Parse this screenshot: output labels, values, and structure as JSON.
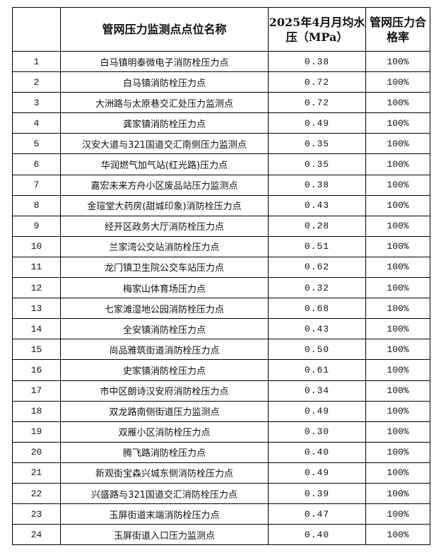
{
  "table": {
    "headers": [
      "",
      "管网压力监测点点位名称",
      "2025年4月月均水压（MPa）",
      "管网压力合格率"
    ],
    "rows": [
      {
        "no": "1",
        "name": "白马镇明泰微电子消防栓压力点",
        "pressure": "0.38",
        "rate": "100%"
      },
      {
        "no": "2",
        "name": "白马镇消防栓压力点",
        "pressure": "0.72",
        "rate": "100%"
      },
      {
        "no": "3",
        "name": "大洲路与太原巷交汇处压力监测点",
        "pressure": "0.72",
        "rate": "100%"
      },
      {
        "no": "4",
        "name": "龚家镇消防栓压力点",
        "pressure": "0.49",
        "rate": "100%"
      },
      {
        "no": "5",
        "name": "汉安大道与321国道交汇南侧压力监测点",
        "pressure": "0.35",
        "rate": "100%"
      },
      {
        "no": "6",
        "name": "华润燃气加气站(红光路)压力点",
        "pressure": "0.35",
        "rate": "100%"
      },
      {
        "no": "7",
        "name": "嘉宏未来方舟小区废品站压力监测点",
        "pressure": "0.38",
        "rate": "100%"
      },
      {
        "no": "8",
        "name": "金瑄堂大药房(甜城印象)消防栓压力点",
        "pressure": "0.43",
        "rate": "100%"
      },
      {
        "no": "9",
        "name": "经开区政务大厅消防栓压力点",
        "pressure": "0.28",
        "rate": "100%"
      },
      {
        "no": "10",
        "name": "兰家湾公交站消防栓压力点",
        "pressure": "0.51",
        "rate": "100%"
      },
      {
        "no": "11",
        "name": "龙门镇卫生院公交车站压力点",
        "pressure": "0.62",
        "rate": "100%"
      },
      {
        "no": "12",
        "name": "梅家山体育场压力点",
        "pressure": "0.32",
        "rate": "100%"
      },
      {
        "no": "13",
        "name": "七家滩湿地公园消防栓压力点",
        "pressure": "0.68",
        "rate": "100%"
      },
      {
        "no": "14",
        "name": "全安镇消防栓压力点",
        "pressure": "0.43",
        "rate": "100%"
      },
      {
        "no": "15",
        "name": "尚品雅筑街道消防栓压力点",
        "pressure": "0.50",
        "rate": "100%"
      },
      {
        "no": "16",
        "name": "史家镇消防栓压力点",
        "pressure": "0.61",
        "rate": "100%"
      },
      {
        "no": "17",
        "name": "市中区朗诗汉安府消防栓压力点",
        "pressure": "0.34",
        "rate": "100%"
      },
      {
        "no": "18",
        "name": "双龙路南侧街道压力监测点",
        "pressure": "0.49",
        "rate": "100%"
      },
      {
        "no": "19",
        "name": "双雁小区消防栓压力点",
        "pressure": "0.30",
        "rate": "100%"
      },
      {
        "no": "20",
        "name": "腾飞路消防栓压力点",
        "pressure": "0.40",
        "rate": "100%"
      },
      {
        "no": "21",
        "name": "新观街宝森兴城东侧消防栓压力点",
        "pressure": "0.49",
        "rate": "100%"
      },
      {
        "no": "22",
        "name": "兴盛路与321国道交汇消防栓压力点",
        "pressure": "0.39",
        "rate": "100%"
      },
      {
        "no": "23",
        "name": "玉屏街道末端消防栓压力点",
        "pressure": "0.47",
        "rate": "100%"
      },
      {
        "no": "24",
        "name": "玉屏街道入口压力监测点",
        "pressure": "0.40",
        "rate": "100%"
      }
    ]
  }
}
